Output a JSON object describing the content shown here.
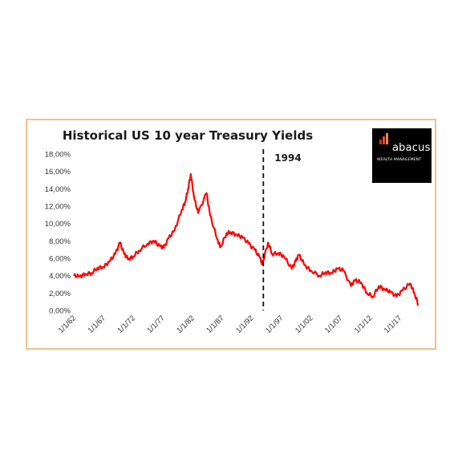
{
  "chart_data": {
    "type": "line",
    "title": "Historical US 10 year Treasury Yields",
    "xlabel": "",
    "ylabel": "",
    "ylim": [
      0,
      18
    ],
    "y_ticks": [
      "0,00%",
      "2,00%",
      "4,00%",
      "6,00%",
      "8,00%",
      "10,00%",
      "12,00%",
      "14,00%",
      "16,00%",
      "18,00%"
    ],
    "x_ticks": [
      "1/1/62",
      "1/1/67",
      "1/1/72",
      "1/1/77",
      "1/1/82",
      "1/1/87",
      "1/1/92",
      "1/1/97",
      "1/1/02",
      "1/1/07",
      "1/1/12",
      "1/1/17"
    ],
    "xlim": [
      1962,
      2020.5
    ],
    "grid": false,
    "series": [
      {
        "color": "#ff0000",
        "x": [
          1962,
          1963,
          1964,
          1965,
          1966,
          1967,
          1968,
          1969,
          1969.8,
          1970.5,
          1971.2,
          1972,
          1973,
          1974.5,
          1975.5,
          1976.5,
          1977.2,
          1978,
          1979,
          1980.2,
          1980.8,
          1981.3,
          1981.75,
          1982.3,
          1983,
          1984.4,
          1985,
          1986.2,
          1986.8,
          1987.8,
          1988.5,
          1989.5,
          1990.5,
          1991.5,
          1992.5,
          1993.5,
          1993.8,
          1994.8,
          1995.5,
          1996.5,
          1997.5,
          1998.8,
          1999.5,
          2000,
          2001,
          2002,
          2003.5,
          2004.5,
          2005.5,
          2006.5,
          2007.5,
          2008.8,
          2009.5,
          2010.5,
          2011.5,
          2012.5,
          2013.5,
          2014.5,
          2015.5,
          2016.5,
          2017.5,
          2018.8,
          2019.5,
          2020.2
        ],
        "values": [
          4.0,
          3.9,
          4.2,
          4.3,
          4.9,
          5.0,
          5.6,
          6.5,
          7.8,
          6.5,
          5.9,
          6.2,
          6.9,
          7.7,
          8.0,
          7.4,
          7.2,
          8.3,
          9.2,
          11.5,
          12.5,
          14.0,
          15.7,
          13.0,
          11.2,
          13.5,
          11.0,
          8.2,
          7.3,
          8.9,
          9.0,
          8.7,
          8.4,
          7.7,
          7.0,
          6.0,
          5.3,
          7.8,
          6.5,
          6.6,
          6.2,
          4.8,
          5.7,
          6.4,
          5.2,
          4.6,
          4.0,
          4.4,
          4.3,
          4.8,
          4.6,
          2.8,
          3.5,
          3.2,
          2.0,
          1.6,
          2.8,
          2.4,
          2.1,
          1.6,
          2.3,
          3.1,
          2.0,
          0.6
        ]
      }
    ],
    "annotations": [
      {
        "type": "vertical-dashed-line",
        "x": 1994,
        "label": "1994"
      }
    ]
  },
  "logo": {
    "name": "abacus",
    "tagline": "WEALTH MANAGEMENT",
    "bar_colors": [
      "#c0392b",
      "#e2502f",
      "#f0884a"
    ]
  }
}
